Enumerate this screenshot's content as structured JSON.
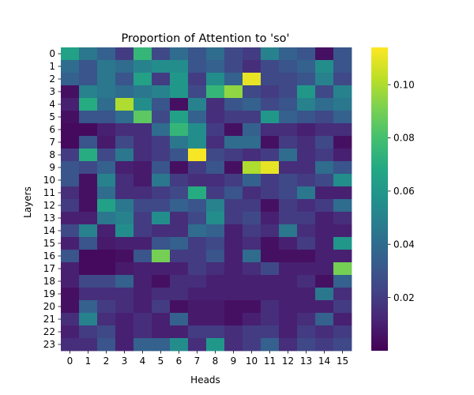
{
  "chart_data": {
    "type": "heatmap",
    "title": "Proportion of Attention to 'so'",
    "xlabel": "Heads",
    "ylabel": "Layers",
    "x_ticks": [
      "0",
      "1",
      "2",
      "3",
      "4",
      "5",
      "6",
      "7",
      "8",
      "9",
      "10",
      "11",
      "12",
      "13",
      "14",
      "15"
    ],
    "y_ticks": [
      "0",
      "1",
      "2",
      "3",
      "4",
      "5",
      "6",
      "7",
      "8",
      "9",
      "10",
      "11",
      "12",
      "13",
      "14",
      "15",
      "16",
      "17",
      "18",
      "19",
      "20",
      "21",
      "22",
      "23"
    ],
    "colorbar": {
      "colormap": "viridis",
      "vmin": 0.0,
      "vmax": 0.114,
      "ticks": [
        0.02,
        0.04,
        0.06,
        0.08,
        0.1
      ],
      "tick_labels": [
        "0.02",
        "0.04",
        "0.06",
        "0.08",
        "0.10"
      ]
    },
    "values": [
      [
        0.065,
        0.045,
        0.035,
        0.02,
        0.075,
        0.025,
        0.04,
        0.03,
        0.04,
        0.025,
        0.02,
        0.05,
        0.035,
        0.03,
        0.005,
        0.03
      ],
      [
        0.04,
        0.03,
        0.045,
        0.04,
        0.05,
        0.055,
        0.055,
        0.03,
        0.035,
        0.025,
        0.015,
        0.025,
        0.03,
        0.035,
        0.055,
        0.03
      ],
      [
        0.035,
        0.03,
        0.045,
        0.03,
        0.065,
        0.02,
        0.06,
        0.02,
        0.055,
        0.035,
        0.11,
        0.025,
        0.025,
        0.03,
        0.05,
        0.025
      ],
      [
        0.005,
        0.05,
        0.045,
        0.04,
        0.045,
        0.05,
        0.06,
        0.025,
        0.075,
        0.095,
        0.025,
        0.02,
        0.025,
        0.06,
        0.025,
        0.05
      ],
      [
        0.01,
        0.07,
        0.04,
        0.1,
        0.055,
        0.03,
        0.005,
        0.05,
        0.015,
        0.03,
        0.035,
        0.025,
        0.03,
        0.05,
        0.04,
        0.045
      ],
      [
        0.005,
        0.03,
        0.03,
        0.04,
        0.085,
        0.025,
        0.065,
        0.035,
        0.015,
        0.02,
        0.02,
        0.06,
        0.035,
        0.03,
        0.025,
        0.035
      ],
      [
        0.003,
        0.003,
        0.01,
        0.015,
        0.015,
        0.04,
        0.075,
        0.055,
        0.02,
        0.005,
        0.035,
        0.015,
        0.015,
        0.01,
        0.015,
        0.015
      ],
      [
        0.003,
        0.03,
        0.008,
        0.025,
        0.015,
        0.02,
        0.045,
        0.055,
        0.015,
        0.04,
        0.04,
        0.005,
        0.02,
        0.015,
        0.025,
        0.005
      ],
      [
        0.02,
        0.07,
        0.025,
        0.045,
        0.015,
        0.02,
        0.03,
        0.113,
        0.025,
        0.02,
        0.015,
        0.02,
        0.04,
        0.015,
        0.02,
        0.01
      ],
      [
        0.03,
        0.025,
        0.035,
        0.01,
        0.008,
        0.03,
        0.005,
        0.02,
        0.03,
        0.005,
        0.1,
        0.11,
        0.015,
        0.015,
        0.04,
        0.03
      ],
      [
        0.03,
        0.005,
        0.05,
        0.015,
        0.008,
        0.045,
        0.02,
        0.015,
        0.015,
        0.02,
        0.035,
        0.02,
        0.025,
        0.02,
        0.025,
        0.055
      ],
      [
        0.015,
        0.005,
        0.04,
        0.015,
        0.015,
        0.02,
        0.025,
        0.07,
        0.02,
        0.03,
        0.015,
        0.02,
        0.025,
        0.045,
        0.01,
        0.01
      ],
      [
        0.02,
        0.005,
        0.065,
        0.045,
        0.025,
        0.025,
        0.035,
        0.03,
        0.05,
        0.02,
        0.02,
        0.005,
        0.02,
        0.015,
        0.02,
        0.04
      ],
      [
        0.01,
        0.01,
        0.045,
        0.05,
        0.02,
        0.055,
        0.015,
        0.025,
        0.055,
        0.02,
        0.025,
        0.01,
        0.02,
        0.02,
        0.01,
        0.015
      ],
      [
        0.025,
        0.05,
        0.01,
        0.055,
        0.02,
        0.015,
        0.015,
        0.04,
        0.035,
        0.01,
        0.02,
        0.015,
        0.045,
        0.015,
        0.01,
        0.01
      ],
      [
        0.01,
        0.03,
        0.008,
        0.01,
        0.01,
        0.03,
        0.035,
        0.02,
        0.025,
        0.01,
        0.015,
        0.005,
        0.01,
        0.02,
        0.01,
        0.06
      ],
      [
        0.03,
        0.003,
        0.003,
        0.005,
        0.03,
        0.09,
        0.02,
        0.02,
        0.03,
        0.01,
        0.04,
        0.005,
        0.005,
        0.005,
        0.01,
        0.01
      ],
      [
        0.01,
        0.003,
        0.003,
        0.008,
        0.01,
        0.01,
        0.01,
        0.02,
        0.015,
        0.01,
        0.015,
        0.025,
        0.01,
        0.01,
        0.01,
        0.09
      ],
      [
        0.01,
        0.025,
        0.025,
        0.035,
        0.01,
        0.005,
        0.015,
        0.015,
        0.01,
        0.01,
        0.01,
        0.01,
        0.01,
        0.015,
        0.005,
        0.035
      ],
      [
        0.005,
        0.015,
        0.015,
        0.015,
        0.01,
        0.015,
        0.015,
        0.01,
        0.01,
        0.01,
        0.01,
        0.01,
        0.01,
        0.01,
        0.045,
        0.015
      ],
      [
        0.005,
        0.035,
        0.02,
        0.015,
        0.01,
        0.02,
        0.005,
        0.008,
        0.008,
        0.005,
        0.005,
        0.015,
        0.01,
        0.01,
        0.01,
        0.02
      ],
      [
        0.015,
        0.05,
        0.015,
        0.01,
        0.015,
        0.01,
        0.035,
        0.008,
        0.008,
        0.005,
        0.01,
        0.015,
        0.01,
        0.015,
        0.035,
        0.01
      ],
      [
        0.01,
        0.02,
        0.025,
        0.01,
        0.015,
        0.01,
        0.01,
        0.02,
        0.02,
        0.015,
        0.02,
        0.02,
        0.01,
        0.02,
        0.015,
        0.02
      ],
      [
        0.015,
        0.015,
        0.03,
        0.01,
        0.035,
        0.035,
        0.055,
        0.015,
        0.06,
        0.015,
        0.02,
        0.035,
        0.015,
        0.025,
        0.02,
        0.025
      ]
    ]
  }
}
